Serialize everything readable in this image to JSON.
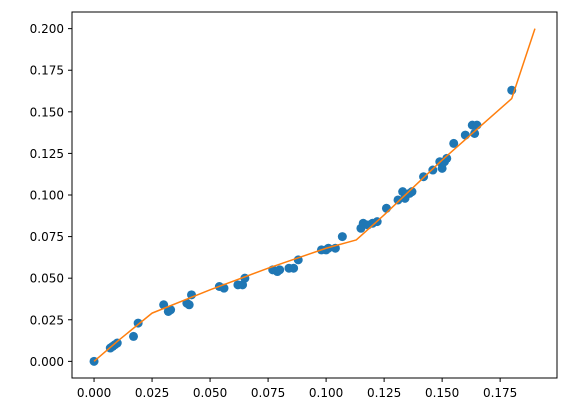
{
  "chart_data": {
    "type": "scatter",
    "title": "",
    "xlabel": "",
    "ylabel": "",
    "xlim": [
      -0.0095,
      0.1995
    ],
    "ylim": [
      -0.01,
      0.21
    ],
    "grid": false,
    "legend": "none",
    "x_ticks": [
      {
        "value": 0.0,
        "label": "0.000"
      },
      {
        "value": 0.025,
        "label": "0.025"
      },
      {
        "value": 0.05,
        "label": "0.050"
      },
      {
        "value": 0.075,
        "label": "0.075"
      },
      {
        "value": 0.1,
        "label": "0.100"
      },
      {
        "value": 0.125,
        "label": "0.125"
      },
      {
        "value": 0.15,
        "label": "0.150"
      },
      {
        "value": 0.175,
        "label": "0.175"
      }
    ],
    "y_ticks": [
      {
        "value": 0.0,
        "label": "0.000"
      },
      {
        "value": 0.025,
        "label": "0.025"
      },
      {
        "value": 0.05,
        "label": "0.050"
      },
      {
        "value": 0.075,
        "label": "0.075"
      },
      {
        "value": 0.1,
        "label": "0.100"
      },
      {
        "value": 0.125,
        "label": "0.125"
      },
      {
        "value": 0.15,
        "label": "0.150"
      },
      {
        "value": 0.175,
        "label": "0.175"
      },
      {
        "value": 0.2,
        "label": "0.200"
      }
    ],
    "series": [
      {
        "kind": "scatter",
        "color": "#1f77b4",
        "points": [
          [
            0.0,
            0.0
          ],
          [
            0.007,
            0.008
          ],
          [
            0.008,
            0.009
          ],
          [
            0.009,
            0.01
          ],
          [
            0.01,
            0.011
          ],
          [
            0.017,
            0.015
          ],
          [
            0.019,
            0.023
          ],
          [
            0.03,
            0.034
          ],
          [
            0.032,
            0.03
          ],
          [
            0.033,
            0.031
          ],
          [
            0.04,
            0.035
          ],
          [
            0.041,
            0.034
          ],
          [
            0.042,
            0.04
          ],
          [
            0.054,
            0.045
          ],
          [
            0.056,
            0.044
          ],
          [
            0.062,
            0.046
          ],
          [
            0.064,
            0.046
          ],
          [
            0.065,
            0.05
          ],
          [
            0.077,
            0.055
          ],
          [
            0.079,
            0.054
          ],
          [
            0.08,
            0.055
          ],
          [
            0.084,
            0.056
          ],
          [
            0.086,
            0.056
          ],
          [
            0.088,
            0.061
          ],
          [
            0.098,
            0.067
          ],
          [
            0.1,
            0.067
          ],
          [
            0.101,
            0.068
          ],
          [
            0.104,
            0.068
          ],
          [
            0.107,
            0.075
          ],
          [
            0.115,
            0.08
          ],
          [
            0.116,
            0.083
          ],
          [
            0.118,
            0.082
          ],
          [
            0.12,
            0.083
          ],
          [
            0.122,
            0.084
          ],
          [
            0.126,
            0.092
          ],
          [
            0.131,
            0.097
          ],
          [
            0.133,
            0.102
          ],
          [
            0.134,
            0.098
          ],
          [
            0.136,
            0.101
          ],
          [
            0.137,
            0.102
          ],
          [
            0.142,
            0.111
          ],
          [
            0.146,
            0.115
          ],
          [
            0.149,
            0.12
          ],
          [
            0.15,
            0.116
          ],
          [
            0.151,
            0.12
          ],
          [
            0.152,
            0.122
          ],
          [
            0.155,
            0.131
          ],
          [
            0.16,
            0.136
          ],
          [
            0.163,
            0.142
          ],
          [
            0.164,
            0.137
          ],
          [
            0.165,
            0.142
          ],
          [
            0.18,
            0.163
          ]
        ]
      },
      {
        "kind": "line",
        "color": "#ff7f0e",
        "points": [
          [
            0.0,
            0.0
          ],
          [
            0.01,
            0.012
          ],
          [
            0.025,
            0.029
          ],
          [
            0.05,
            0.043
          ],
          [
            0.075,
            0.056
          ],
          [
            0.1,
            0.068
          ],
          [
            0.113,
            0.073
          ],
          [
            0.125,
            0.088
          ],
          [
            0.15,
            0.121
          ],
          [
            0.18,
            0.158
          ],
          [
            0.19,
            0.2
          ]
        ]
      }
    ]
  }
}
